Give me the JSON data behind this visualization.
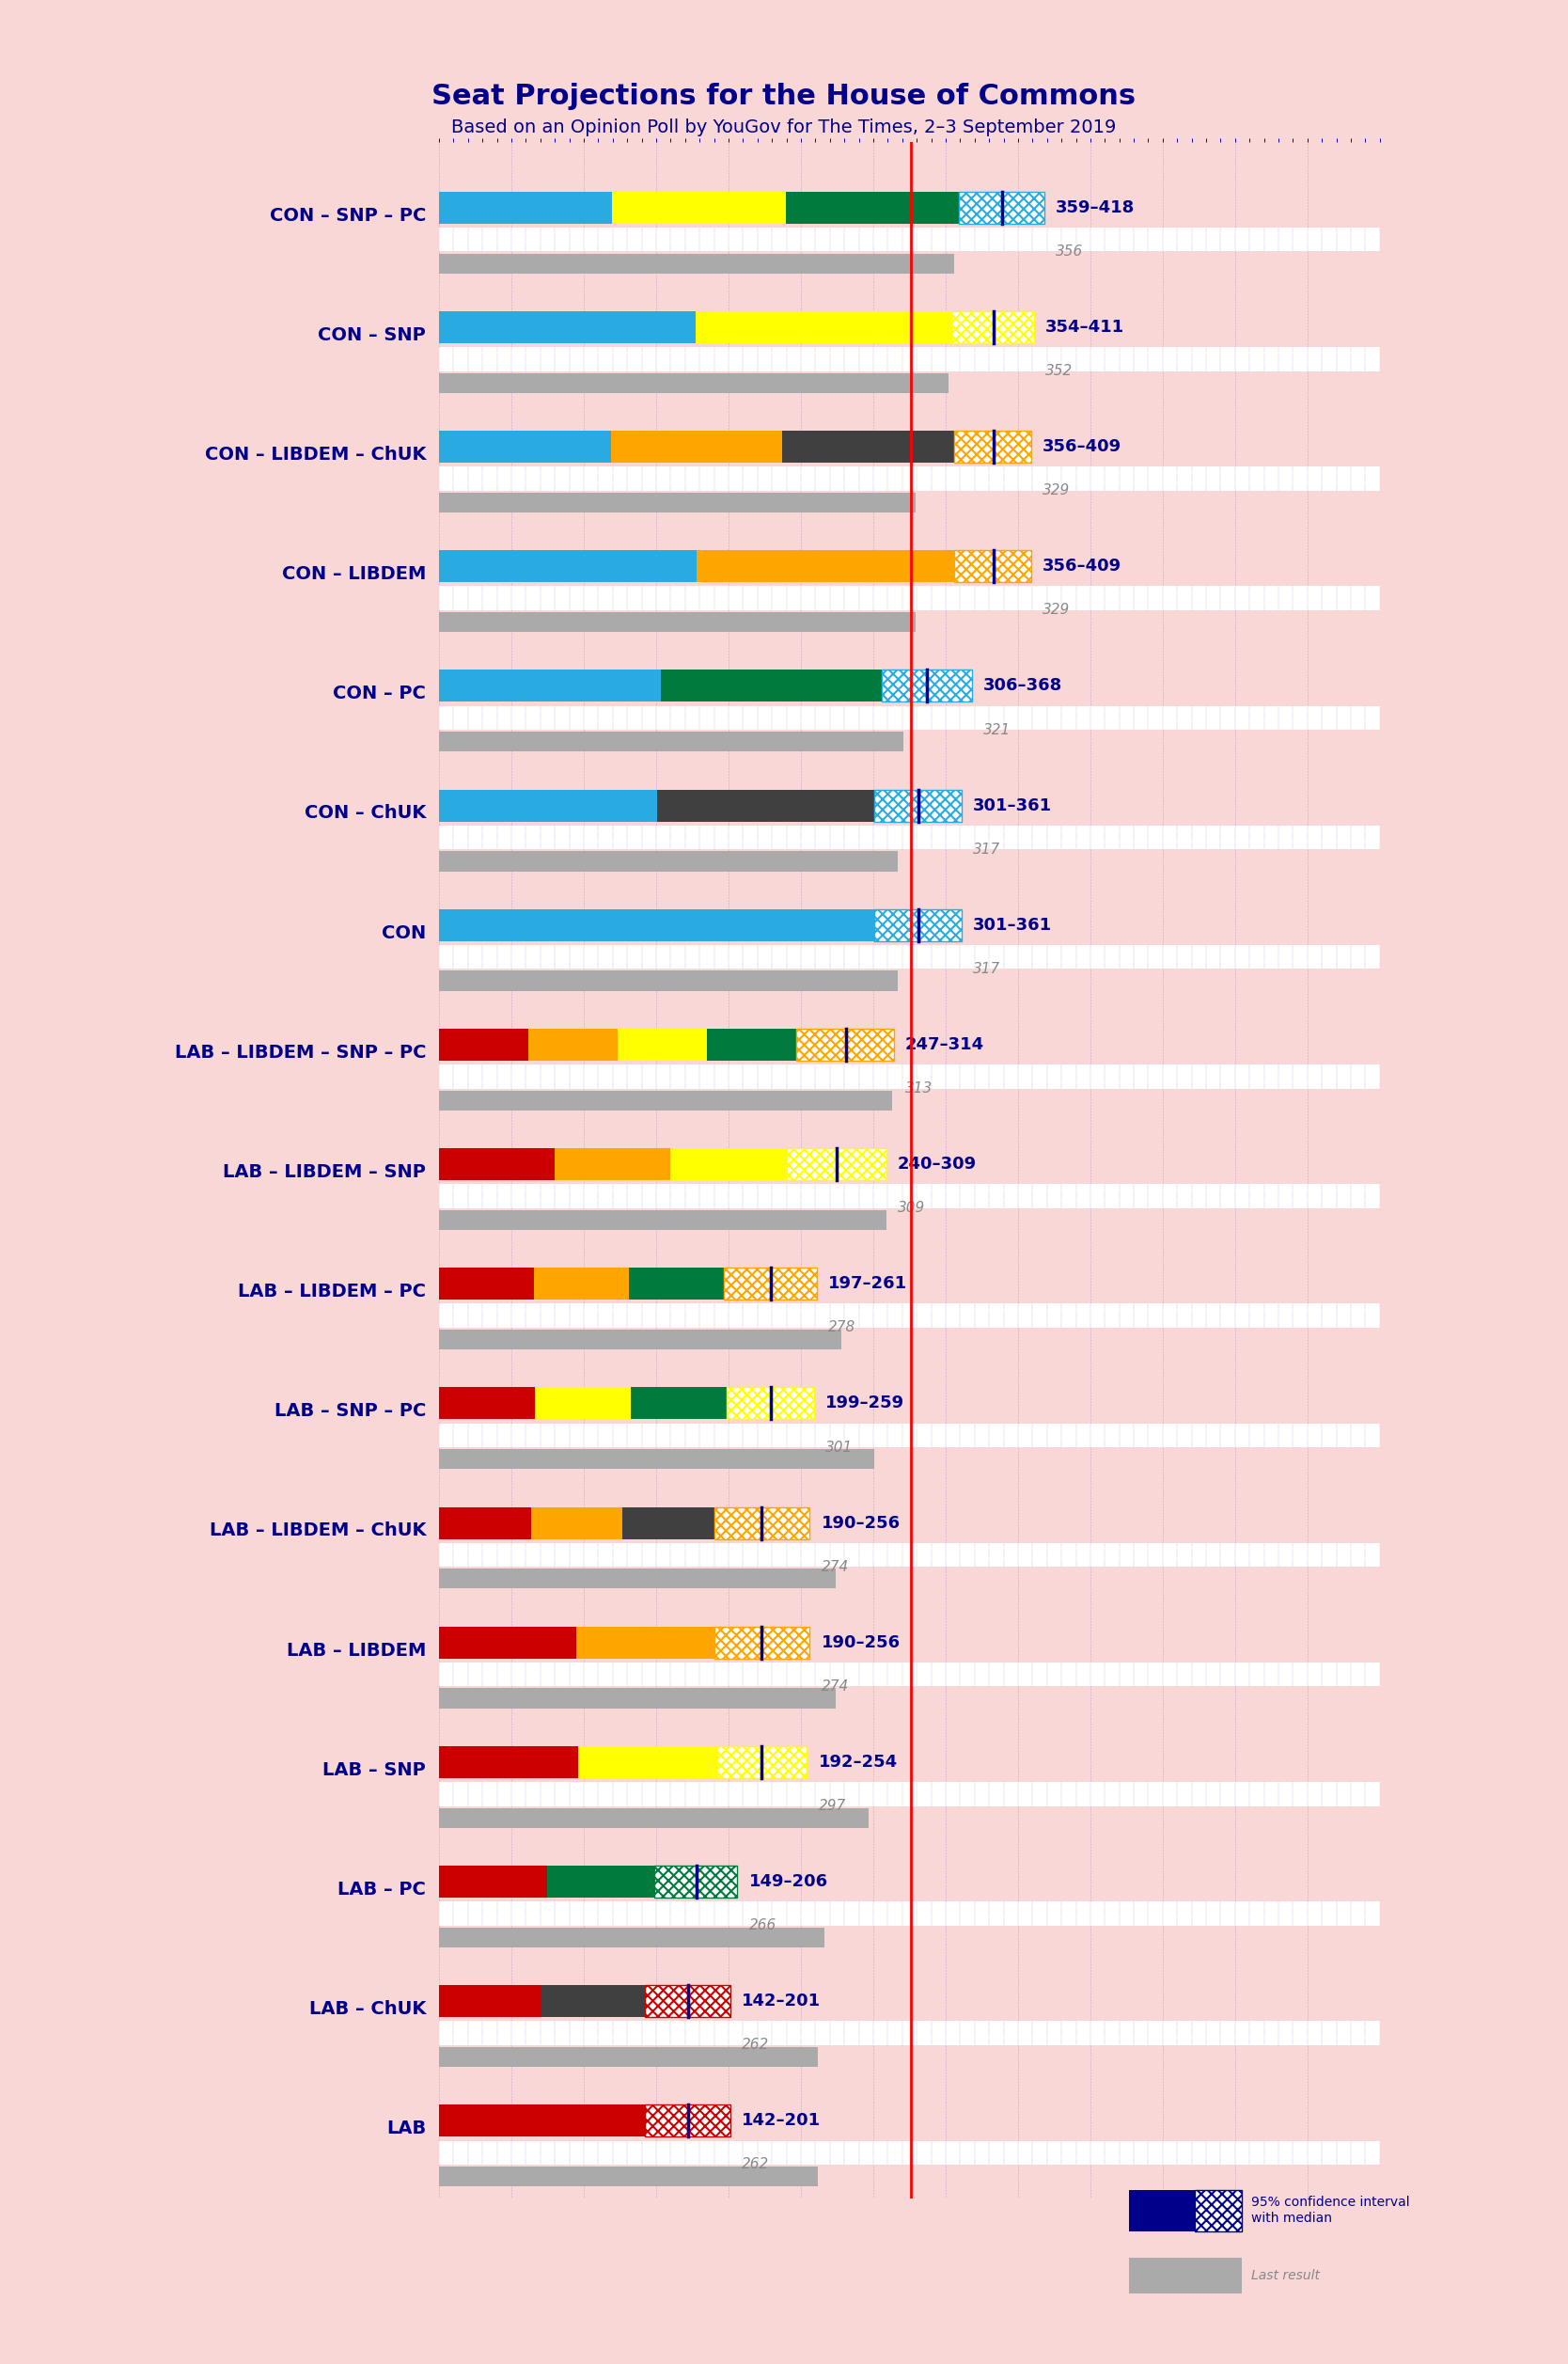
{
  "title": "Seat Projections for the House of Commons",
  "subtitle": "Based on an Opinion Poll by YouGov for The Times, 2–3 September 2019",
  "background_color": "#f9d7d7",
  "title_color": "#00008B",
  "subtitle_color": "#00008B",
  "majority_line": 326,
  "xmax": 650,
  "coalitions": [
    {
      "name": "CON – SNP – PC",
      "ci_low": 359,
      "ci_high": 418,
      "median": 389,
      "last_result": 356,
      "colors": [
        "#29ABE2",
        "#FFFF00",
        "#007A3D"
      ],
      "hatch_color": "#29ABE2"
    },
    {
      "name": "CON – SNP",
      "ci_low": 354,
      "ci_high": 411,
      "median": 383,
      "last_result": 352,
      "colors": [
        "#29ABE2",
        "#FFFF00"
      ],
      "hatch_color": "#FFFF00"
    },
    {
      "name": "CON – LIBDEM – ChUK",
      "ci_low": 356,
      "ci_high": 409,
      "median": 383,
      "last_result": 329,
      "colors": [
        "#29ABE2",
        "#FFA500",
        "#404040"
      ],
      "hatch_color": "#FFA500"
    },
    {
      "name": "CON – LIBDEM",
      "ci_low": 356,
      "ci_high": 409,
      "median": 383,
      "last_result": 329,
      "colors": [
        "#29ABE2",
        "#FFA500"
      ],
      "hatch_color": "#FFA500"
    },
    {
      "name": "CON – PC",
      "ci_low": 306,
      "ci_high": 368,
      "median": 337,
      "last_result": 321,
      "colors": [
        "#29ABE2",
        "#007A3D"
      ],
      "hatch_color": "#29ABE2"
    },
    {
      "name": "CON – ChUK",
      "ci_low": 301,
      "ci_high": 361,
      "median": 331,
      "last_result": 317,
      "colors": [
        "#29ABE2",
        "#404040"
      ],
      "hatch_color": "#29ABE2"
    },
    {
      "name": "CON",
      "ci_low": 301,
      "ci_high": 361,
      "median": 331,
      "last_result": 317,
      "colors": [
        "#29ABE2"
      ],
      "hatch_color": "#29ABE2"
    },
    {
      "name": "LAB – LIBDEM – SNP – PC",
      "ci_low": 247,
      "ci_high": 314,
      "median": 281,
      "last_result": 313,
      "colors": [
        "#CC0000",
        "#FFA500",
        "#FFFF00",
        "#007A3D"
      ],
      "hatch_color": "#FFA500"
    },
    {
      "name": "LAB – LIBDEM – SNP",
      "ci_low": 240,
      "ci_high": 309,
      "median": 275,
      "last_result": 309,
      "colors": [
        "#CC0000",
        "#FFA500",
        "#FFFF00"
      ],
      "hatch_color": "#FFFF00"
    },
    {
      "name": "LAB – LIBDEM – PC",
      "ci_low": 197,
      "ci_high": 261,
      "median": 229,
      "last_result": 278,
      "colors": [
        "#CC0000",
        "#FFA500",
        "#007A3D"
      ],
      "hatch_color": "#FFA500"
    },
    {
      "name": "LAB – SNP – PC",
      "ci_low": 199,
      "ci_high": 259,
      "median": 229,
      "last_result": 301,
      "colors": [
        "#CC0000",
        "#FFFF00",
        "#007A3D"
      ],
      "hatch_color": "#FFFF00"
    },
    {
      "name": "LAB – LIBDEM – ChUK",
      "ci_low": 190,
      "ci_high": 256,
      "median": 223,
      "last_result": 274,
      "colors": [
        "#CC0000",
        "#FFA500",
        "#404040"
      ],
      "hatch_color": "#FFA500"
    },
    {
      "name": "LAB – LIBDEM",
      "ci_low": 190,
      "ci_high": 256,
      "median": 223,
      "last_result": 274,
      "colors": [
        "#CC0000",
        "#FFA500"
      ],
      "hatch_color": "#FFA500"
    },
    {
      "name": "LAB – SNP",
      "ci_low": 192,
      "ci_high": 254,
      "median": 223,
      "last_result": 297,
      "colors": [
        "#CC0000",
        "#FFFF00"
      ],
      "hatch_color": "#FFFF00"
    },
    {
      "name": "LAB – PC",
      "ci_low": 149,
      "ci_high": 206,
      "median": 178,
      "last_result": 266,
      "colors": [
        "#CC0000",
        "#007A3D"
      ],
      "hatch_color": "#007A3D"
    },
    {
      "name": "LAB – ChUK",
      "ci_low": 142,
      "ci_high": 201,
      "median": 172,
      "last_result": 262,
      "colors": [
        "#CC0000",
        "#404040"
      ],
      "hatch_color": "#CC0000"
    },
    {
      "name": "LAB",
      "ci_low": 142,
      "ci_high": 201,
      "median": 172,
      "last_result": 262,
      "colors": [
        "#CC0000"
      ],
      "hatch_color": "#CC0000"
    }
  ]
}
